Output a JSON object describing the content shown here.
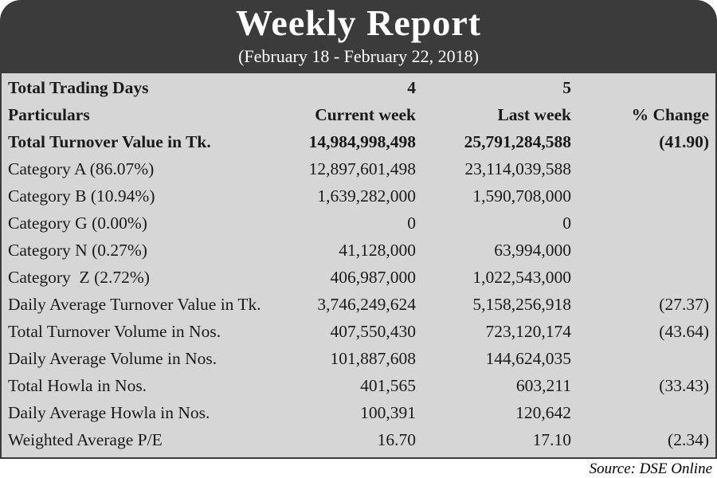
{
  "header": {
    "title": "Weekly Report",
    "subtitle": "(February 18 - February 22, 2018)"
  },
  "table": {
    "rows": [
      [
        "Total Trading Days",
        "4",
        "5",
        null
      ],
      [
        "Particulars",
        "Current week",
        "Last week",
        "% Change"
      ],
      [
        "Total Turnover Value in Tk.",
        "14,984,998,498",
        "25,791,284,588",
        "(41.90)"
      ],
      [
        "Category A (86.07%)",
        "12,897,601,498",
        "23,114,039,588",
        null
      ],
      [
        "Category B (10.94%)",
        "1,639,282,000",
        "1,590,708,000",
        null
      ],
      [
        "Category G (0.00%)",
        "0",
        "0",
        null
      ],
      [
        "Category N (0.27%)",
        "41,128,000",
        "63,994,000",
        null
      ],
      [
        "Category  Z (2.72%)",
        "406,987,000",
        "1,022,543,000",
        null
      ],
      [
        "Daily Average Turnover Value in Tk.",
        "3,746,249,624",
        "5,158,256,918",
        "(27.37)"
      ],
      [
        "Total Turnover Volume in Nos.",
        "407,550,430",
        "723,120,174",
        "(43.64)"
      ],
      [
        "Daily Average Volume in Nos.",
        "101,887,608",
        "144,624,035",
        null
      ],
      [
        "Total Howla in Nos.",
        "401,565",
        "603,211",
        "(33.43)"
      ],
      [
        "Daily Average Howla in Nos.",
        "100,391",
        "120,642",
        null
      ],
      [
        "Weighted Average P/E",
        "16.70",
        "17.10",
        "(2.34)"
      ]
    ],
    "bold_rows": 3
  },
  "source": "Source: DSE Online"
}
